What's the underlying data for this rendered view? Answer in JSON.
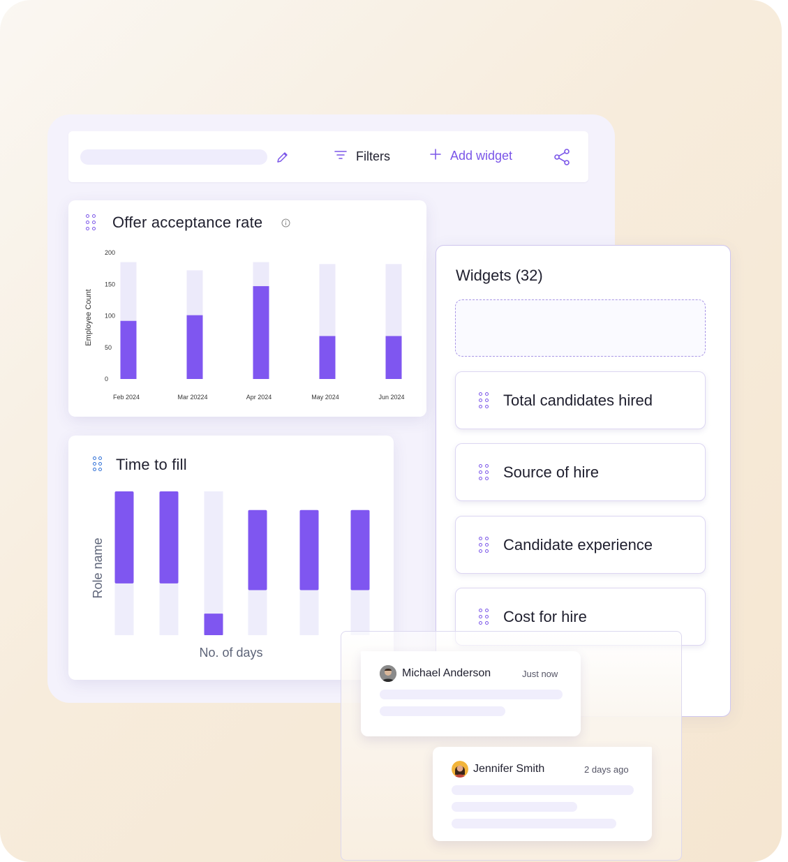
{
  "toolbar": {
    "filters_label": "Filters",
    "add_widget_label": "Add widget"
  },
  "offer_card": {
    "title": "Offer acceptance rate"
  },
  "time_to_fill_card": {
    "title": "Time to fill"
  },
  "chart_data": [
    {
      "type": "bar",
      "title": "Offer acceptance rate",
      "ylabel": "Employee Count",
      "xlabel": "",
      "ylim": [
        0,
        200
      ],
      "yticks": [
        0,
        50,
        100,
        150,
        200
      ],
      "categories": [
        "Feb 2024",
        "Mar 20224",
        "Apr 2024",
        "May 2024",
        "Jun 2024"
      ],
      "series": [
        {
          "values": [
            92,
            101,
            147,
            68,
            68
          ]
        },
        {
          "values": [
            185,
            172,
            185,
            182,
            182
          ]
        }
      ],
      "stacked": false,
      "grid": false,
      "colors": {
        "fill": "#7f56f0",
        "track": "#eceafa"
      }
    },
    {
      "type": "bar",
      "title": "Time to fill",
      "ylabel": "Role name",
      "xlabel": "No. of days",
      "ylim": [
        0,
        100
      ],
      "categories": [
        "",
        "",
        "",
        "",
        "",
        ""
      ],
      "series": [
        {
          "values": [
            100,
            100,
            15,
            87,
            87,
            87
          ]
        },
        {
          "values": [
            65,
            65,
            100,
            87,
            87,
            87
          ]
        }
      ],
      "grid": false,
      "colors": {
        "fill": "#7f56f0",
        "track": "#eeedfb"
      }
    }
  ],
  "widgets": {
    "title": "Widgets (32)",
    "items": [
      {
        "label": "Total candidates hired"
      },
      {
        "label": "Source of hire"
      },
      {
        "label": "Candidate experience"
      },
      {
        "label": "Cost for hire"
      }
    ]
  },
  "comments": [
    {
      "author": "Michael Anderson",
      "time": "Just now"
    },
    {
      "author": "Jennifer Smith",
      "time": "2 days ago"
    }
  ],
  "colors": {
    "accent": "#7a55e8",
    "bar": "#7f56f0",
    "track": "#eceafa"
  },
  "icons": [
    "edit-icon",
    "filter-icon",
    "plus-icon",
    "share-icon",
    "drag-handle-icon",
    "info-icon"
  ]
}
